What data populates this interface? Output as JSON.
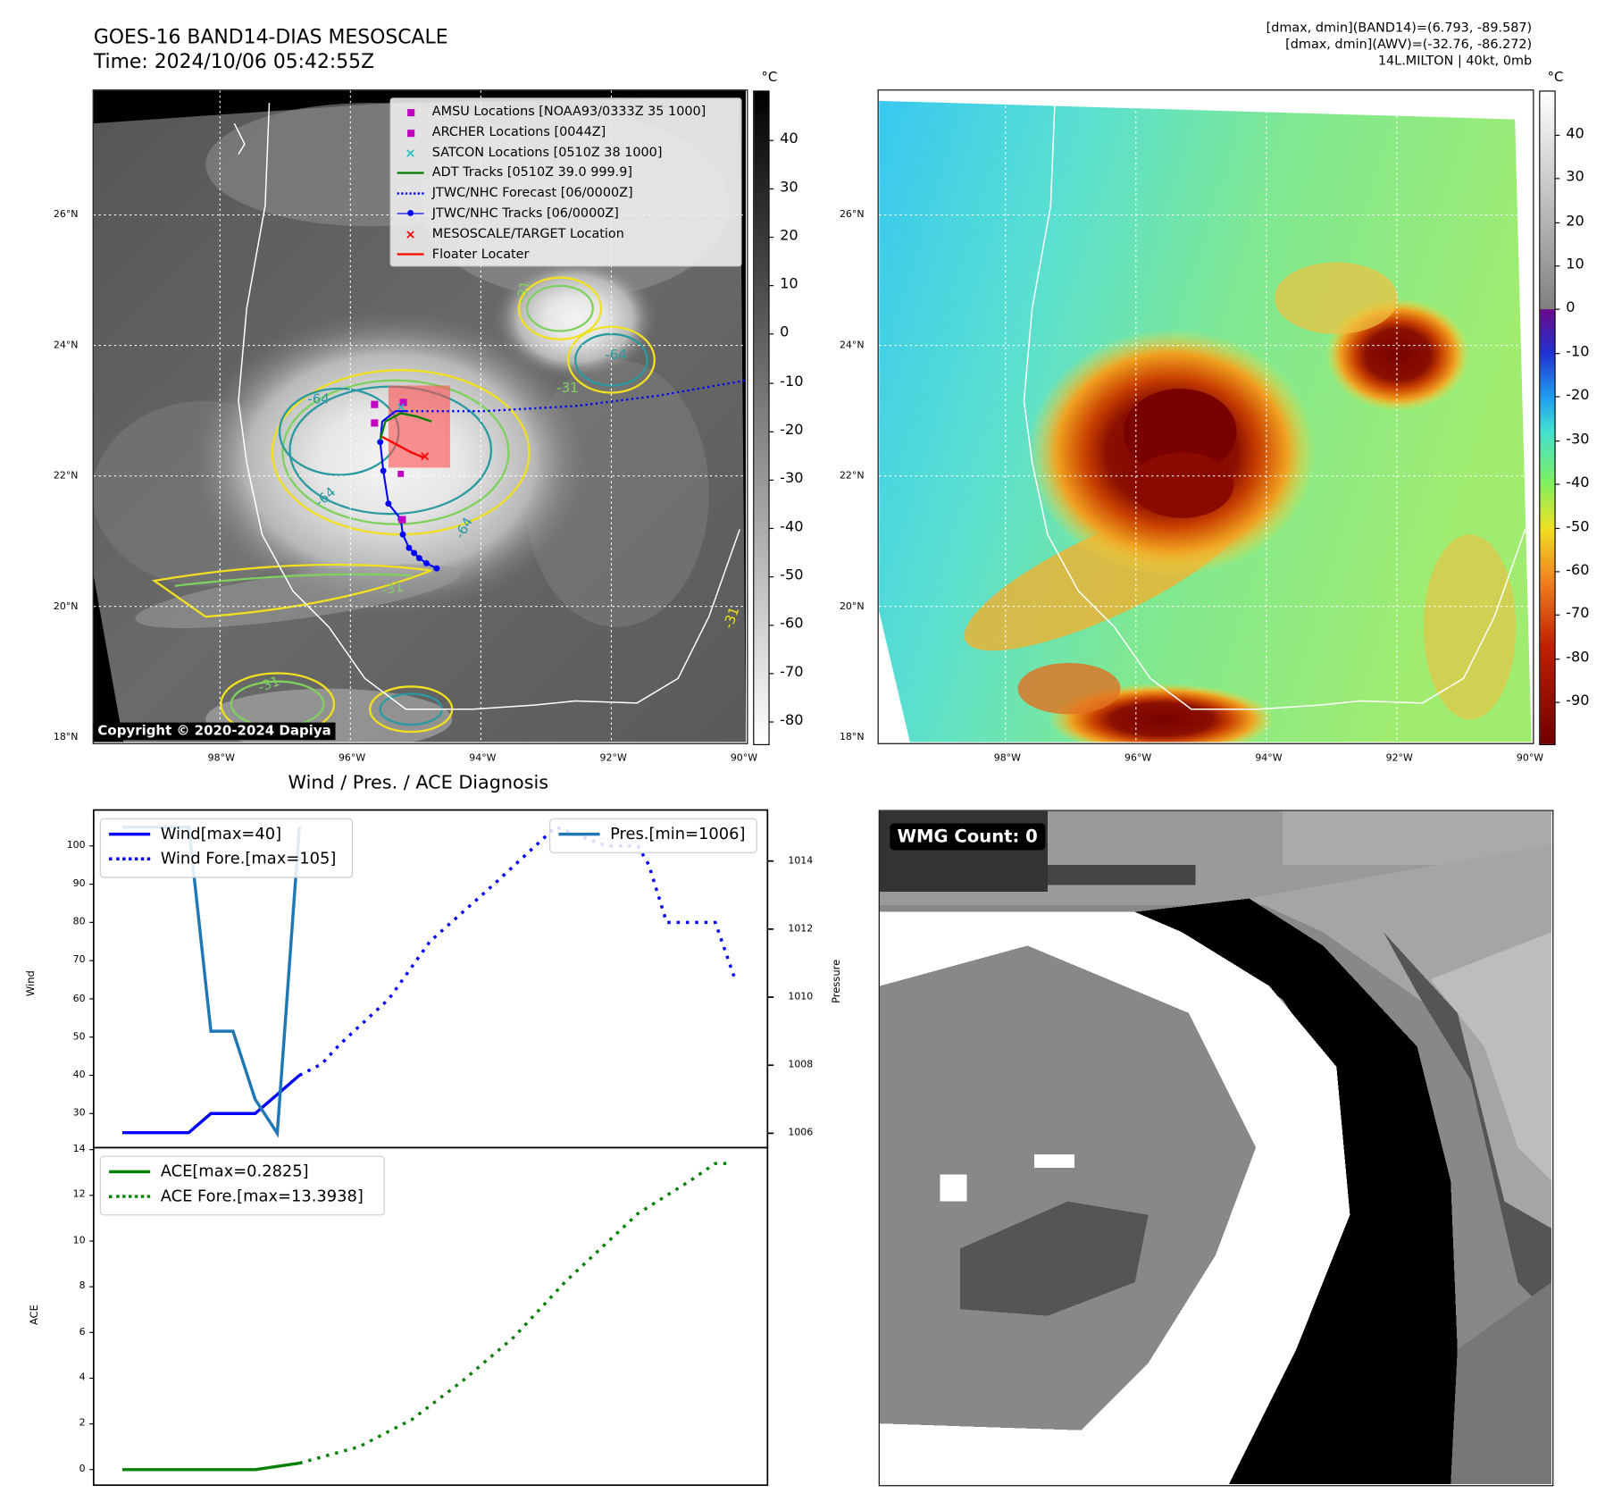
{
  "header": {
    "title": "GOES-16 BAND14-DIAS MESOSCALE",
    "time": "Time: 2024/10/06 05:42:55Z",
    "info_lines": [
      "[dmax, dmin](BAND14)=(6.793, -89.587)",
      "[dmax, dmin](AWV)=(-32.76, -86.272)",
      "14L.MILTON | 40kt, 0mb"
    ]
  },
  "ir_map": {
    "lon_ticks": [
      "98°W",
      "96°W",
      "94°W",
      "92°W",
      "90°W"
    ],
    "lat_ticks": [
      "26°N",
      "24°N",
      "22°N",
      "20°N",
      "18°N"
    ],
    "colorbar_unit": "°C",
    "colorbar_ticks": [
      40,
      30,
      20,
      10,
      0,
      -10,
      -20,
      -30,
      -40,
      -50,
      -60,
      -70,
      -80
    ],
    "copyright": "Copyright © 2020-2024 Dapiya",
    "legend": [
      {
        "label": "AMSU Locations [NOAA93/0333Z 35 1000]",
        "color": "#c000c0",
        "marker": "square"
      },
      {
        "label": "ARCHER Locations [0044Z]",
        "color": "#c000c0",
        "marker": "square"
      },
      {
        "label": "SATCON Locations [0510Z 38 1000]",
        "color": "#20c0c0",
        "marker": "x"
      },
      {
        "label": "ADT Tracks [0510Z 39.0 999.9]",
        "color": "#008000",
        "marker": "line"
      },
      {
        "label": "JTWC/NHC Forecast [06/0000Z]",
        "color": "#0000ff",
        "marker": "dotted"
      },
      {
        "label": "JTWC/NHC Tracks [06/0000Z]",
        "color": "#0000ff",
        "marker": "line-dot"
      },
      {
        "label": "MESOSCALE/TARGET Location",
        "color": "#ff0000",
        "marker": "x"
      },
      {
        "label": "Floater Locater",
        "color": "#ff0000",
        "marker": "line"
      }
    ],
    "contour_labels": [
      "-64",
      "-31",
      "-64",
      "-64",
      "-31",
      "-31",
      "-64",
      "-31",
      "-31"
    ]
  },
  "awv_map": {
    "lon_ticks": [
      "98°W",
      "96°W",
      "94°W",
      "92°W",
      "90°W"
    ],
    "lat_ticks": [
      "26°N",
      "24°N",
      "22°N",
      "20°N",
      "18°N"
    ],
    "colorbar_unit": "°C",
    "colorbar_ticks": [
      40,
      30,
      20,
      10,
      0,
      -10,
      -20,
      -30,
      -40,
      -50,
      -60,
      -70,
      -80,
      -90
    ]
  },
  "wmg": {
    "label": "WMG Count: 0"
  },
  "colors": {
    "wind": "#0000ff",
    "pressure": "#1f77b4",
    "ace": "#008000"
  },
  "chart_data": [
    {
      "type": "line",
      "title": "Wind / Pres. / ACE Diagnosis",
      "ylabel": "Wind",
      "y2label": "Pressure",
      "xlim": [
        -1.3,
        29.16
      ],
      "ylim": [
        21.1,
        109.4
      ],
      "y2lim": [
        1005.58,
        1015.5
      ],
      "yticks": [
        30,
        40,
        50,
        60,
        70,
        80,
        90,
        100
      ],
      "y2ticks": [
        1006,
        1008,
        1010,
        1012,
        1014
      ],
      "series": [
        {
          "name": "Wind[max=40]",
          "axis": "left",
          "style": "solid",
          "x": [
            0,
            3,
            4,
            6,
            7,
            8
          ],
          "values": [
            25,
            25,
            30,
            30,
            35,
            40
          ]
        },
        {
          "name": "Wind Fore.[max=105]",
          "axis": "left",
          "style": "dotted",
          "x": [
            8,
            9.02,
            9.81,
            12.05,
            13.9,
            16.8,
            19.6,
            20.5,
            21.9,
            23.3,
            23.8,
            24.6,
            26.8,
            27.7
          ],
          "values": [
            40,
            43,
            48,
            60,
            75,
            90,
            105,
            103,
            100,
            100,
            95,
            80,
            80,
            65
          ]
        },
        {
          "name": "Pres.[min=1006]",
          "axis": "right",
          "style": "solid",
          "x": [
            0,
            3,
            4,
            5,
            6,
            7,
            8
          ],
          "values": [
            1015,
            1015,
            1009,
            1009,
            1007,
            1006,
            1015
          ]
        }
      ],
      "legend_left": [
        "Wind[max=40]",
        "Wind Fore.[max=105]"
      ],
      "legend_right": [
        "Pres.[min=1006]"
      ]
    },
    {
      "type": "line",
      "ylabel": "ACE",
      "xlim": [
        -1.3,
        29.16
      ],
      "ylim": [
        -0.68,
        14.09
      ],
      "yticks": [
        0,
        2,
        4,
        6,
        8,
        10,
        12,
        14
      ],
      "series": [
        {
          "name": "ACE[max=0.2825]",
          "style": "solid",
          "x": [
            0,
            3,
            6,
            8
          ],
          "values": [
            0,
            0,
            0,
            0.2825
          ]
        },
        {
          "name": "ACE Fore.[max=13.3938]",
          "style": "dotted",
          "x": [
            8,
            10.7,
            13.1,
            15.4,
            17.7,
            20.0,
            23.3,
            25.6,
            26.8,
            27.5
          ],
          "values": [
            0.2825,
            1.0,
            2.2,
            3.9,
            5.8,
            8.2,
            11.2,
            12.6,
            13.3938,
            13.3938
          ]
        }
      ]
    }
  ]
}
